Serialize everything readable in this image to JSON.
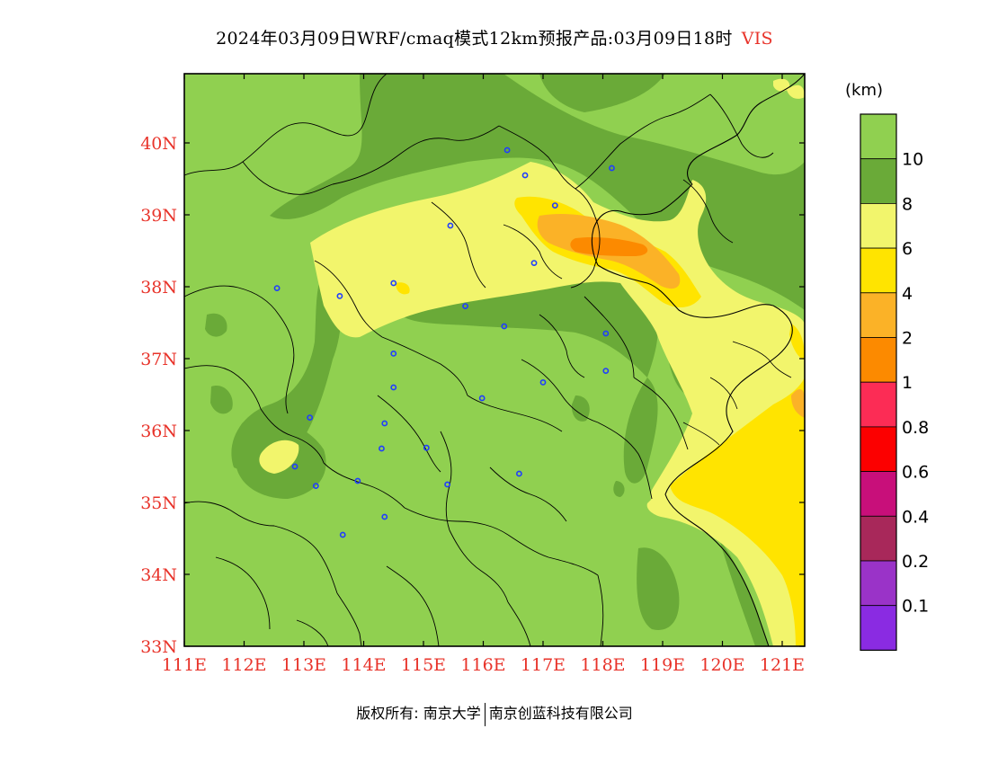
{
  "title": {
    "text": "2024年03月09日WRF/cmaq模式12km预报产品:03月09日18时",
    "variable": "VIS"
  },
  "legend": {
    "unit": "(km)",
    "bins": [
      {
        "label": "",
        "color": "#90d050"
      },
      {
        "label": "10",
        "color": "#6aaa38"
      },
      {
        "label": "8",
        "color": "#f2f56c"
      },
      {
        "label": "6",
        "color": "#ffe400"
      },
      {
        "label": "4",
        "color": "#fbb227"
      },
      {
        "label": "2",
        "color": "#fc8a00"
      },
      {
        "label": "1",
        "color": "#fc2c55"
      },
      {
        "label": "0.8",
        "color": "#fc0000"
      },
      {
        "label": "0.6",
        "color": "#c80f7a"
      },
      {
        "label": "0.4",
        "color": "#a8285a"
      },
      {
        "label": "0.2",
        "color": "#9a33c8"
      },
      {
        "label": "0.1",
        "color": "#8a2be2"
      }
    ]
  },
  "axes": {
    "lon_labels": [
      "111E",
      "112E",
      "113E",
      "114E",
      "115E",
      "116E",
      "117E",
      "118E",
      "119E",
      "120E",
      "121E"
    ],
    "lat_labels": [
      "40N",
      "39N",
      "38N",
      "37N",
      "36N",
      "35N",
      "34N",
      "33N"
    ]
  },
  "stations": [
    {
      "lon": 116.4,
      "lat": 39.9
    },
    {
      "lon": 116.7,
      "lat": 39.55
    },
    {
      "lon": 118.15,
      "lat": 39.65
    },
    {
      "lon": 117.2,
      "lat": 39.13
    },
    {
      "lon": 115.45,
      "lat": 38.85
    },
    {
      "lon": 116.85,
      "lat": 38.33
    },
    {
      "lon": 114.5,
      "lat": 38.05
    },
    {
      "lon": 113.6,
      "lat": 37.87
    },
    {
      "lon": 112.55,
      "lat": 37.98
    },
    {
      "lon": 115.7,
      "lat": 37.73
    },
    {
      "lon": 116.35,
      "lat": 37.45
    },
    {
      "lon": 118.05,
      "lat": 37.35
    },
    {
      "lon": 114.5,
      "lat": 37.07
    },
    {
      "lon": 118.05,
      "lat": 36.83
    },
    {
      "lon": 114.5,
      "lat": 36.6
    },
    {
      "lon": 117.0,
      "lat": 36.67
    },
    {
      "lon": 115.98,
      "lat": 36.45
    },
    {
      "lon": 113.1,
      "lat": 36.18
    },
    {
      "lon": 114.35,
      "lat": 36.1
    },
    {
      "lon": 114.3,
      "lat": 35.75
    },
    {
      "lon": 115.05,
      "lat": 35.76
    },
    {
      "lon": 112.85,
      "lat": 35.5
    },
    {
      "lon": 113.2,
      "lat": 35.23
    },
    {
      "lon": 113.9,
      "lat": 35.3
    },
    {
      "lon": 115.4,
      "lat": 35.25
    },
    {
      "lon": 116.6,
      "lat": 35.4
    },
    {
      "lon": 114.35,
      "lat": 34.8
    },
    {
      "lon": 113.65,
      "lat": 34.55
    }
  ],
  "copyright": {
    "left": "版权所有: 南京大学",
    "right": "南京创蓝科技有限公司"
  }
}
